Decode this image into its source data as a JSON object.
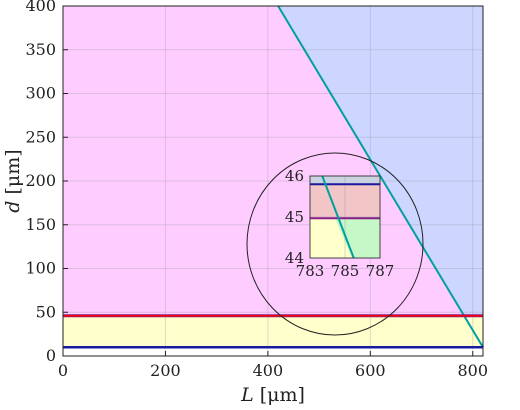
{
  "chart_data": {
    "type": "area",
    "xlabel": "L",
    "xlabel_unit": "[μm]",
    "ylabel": "d",
    "ylabel_unit": "[μm]",
    "xlim": [
      0,
      820
    ],
    "ylim": [
      0,
      400
    ],
    "xticks": [
      0,
      200,
      400,
      600,
      800
    ],
    "yticks": [
      0,
      50,
      100,
      150,
      200,
      250,
      300,
      350,
      400
    ],
    "grid": true,
    "regions": [
      {
        "fill": "#ffccff",
        "polygon": [
          [
            0,
            46
          ],
          [
            0,
            400
          ],
          [
            420,
            400
          ],
          [
            790,
            46
          ]
        ]
      },
      {
        "fill": "#ccd6ff",
        "polygon": [
          [
            420,
            400
          ],
          [
            820,
            400
          ],
          [
            820,
            10
          ]
        ]
      },
      {
        "fill": "#ffffcc",
        "polygon": [
          [
            0,
            10
          ],
          [
            0,
            46
          ],
          [
            820,
            46
          ],
          [
            820,
            10
          ]
        ]
      }
    ],
    "lines": [
      {
        "color": "#00a0a0",
        "points": [
          [
            420,
            400
          ],
          [
            820,
            10
          ]
        ]
      },
      {
        "color": "#1a1aa0",
        "points": [
          [
            0,
            10
          ],
          [
            820,
            10
          ]
        ]
      },
      {
        "color": "#8b1a8b",
        "points": [
          [
            0,
            46
          ],
          [
            820,
            46
          ]
        ]
      },
      {
        "color": "#ff0000",
        "points": [
          [
            0,
            46
          ],
          [
            820,
            46
          ]
        ]
      }
    ],
    "inset": {
      "xlim": [
        783,
        787
      ],
      "ylim": [
        44,
        46
      ],
      "xticks": [
        783,
        785,
        787
      ],
      "yticks": [
        44,
        45,
        46
      ],
      "regions": [
        {
          "fill": "#f2c6c6",
          "polygon": [
            [
              783,
              45
            ],
            [
              783,
              45.8
            ],
            [
              787,
              45.8
            ],
            [
              787,
              45
            ]
          ]
        },
        {
          "fill": "#c9d2de",
          "polygon": [
            [
              783,
              45.8
            ],
            [
              783,
              46
            ],
            [
              787,
              46
            ],
            [
              787,
              45.8
            ]
          ]
        },
        {
          "fill": "#ffffcc",
          "polygon": [
            [
              783,
              44
            ],
            [
              783,
              45
            ],
            [
              787,
              45
            ],
            [
              787,
              44
            ]
          ]
        },
        {
          "fill": "#c6f7c6",
          "polygon": [
            [
              785.4,
              44
            ],
            [
              787,
              44
            ],
            [
              787,
              45
            ],
            [
              784.4,
              45
            ]
          ]
        }
      ],
      "lines": [
        {
          "color": "#1a1aa0",
          "points": [
            [
              783,
              45.8
            ],
            [
              787,
              45.8
            ]
          ]
        },
        {
          "color": "#8b1a8b",
          "points": [
            [
              783,
              44.97
            ],
            [
              787,
              44.97
            ]
          ]
        },
        {
          "color": "#00a0a0",
          "points": [
            [
              783.7,
              46
            ],
            [
              785.5,
              44
            ]
          ]
        }
      ]
    }
  }
}
